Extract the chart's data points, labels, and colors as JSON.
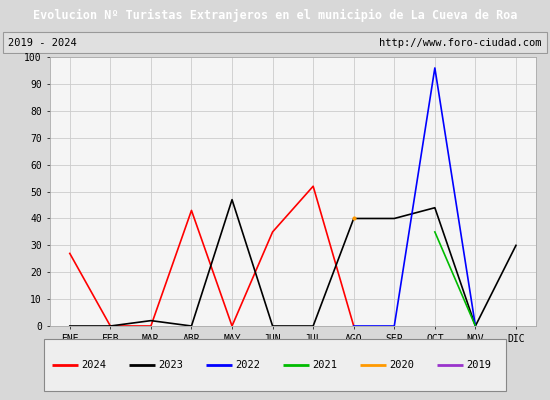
{
  "title": "Evolucion Nº Turistas Extranjeros en el municipio de La Cueva de Roa",
  "subtitle_left": "2019 - 2024",
  "subtitle_right": "http://www.foro-ciudad.com",
  "title_bg": "#4472c4",
  "title_fg": "#ffffff",
  "months": [
    "ENE",
    "FEB",
    "MAR",
    "ABR",
    "MAY",
    "JUN",
    "JUL",
    "AGO",
    "SEP",
    "OCT",
    "NOV",
    "DIC"
  ],
  "ylim": [
    0,
    100
  ],
  "yticks": [
    0,
    10,
    20,
    30,
    40,
    50,
    60,
    70,
    80,
    90,
    100
  ],
  "series": [
    {
      "year": "2024",
      "color": "#ff0000",
      "data": [
        27,
        0,
        0,
        43,
        0,
        35,
        52,
        0,
        null,
        null,
        null,
        null
      ]
    },
    {
      "year": "2023",
      "color": "#000000",
      "data": [
        0,
        0,
        2,
        0,
        47,
        0,
        0,
        40,
        40,
        44,
        0,
        30
      ]
    },
    {
      "year": "2022",
      "color": "#0000ff",
      "data": [
        null,
        null,
        null,
        null,
        null,
        null,
        null,
        0,
        0,
        96,
        0,
        null
      ]
    },
    {
      "year": "2021",
      "color": "#00bb00",
      "data": [
        null,
        null,
        null,
        null,
        null,
        null,
        null,
        null,
        null,
        35,
        0,
        null
      ]
    },
    {
      "year": "2020",
      "color": "#ff9900",
      "data": [
        null,
        null,
        null,
        null,
        null,
        null,
        null,
        40,
        null,
        null,
        null,
        null
      ]
    },
    {
      "year": "2019",
      "color": "#9933cc",
      "data": [
        null,
        null,
        null,
        null,
        null,
        null,
        null,
        null,
        null,
        null,
        null,
        null
      ]
    }
  ],
  "plot_bg": "#f5f5f5",
  "fig_bg": "#d8d8d8",
  "grid_color": "#cccccc",
  "legend_bg": "#eeeeee",
  "legend_border": "#888888",
  "subtitle_bg": "#e0e0e0",
  "subtitle_border": "#999999"
}
